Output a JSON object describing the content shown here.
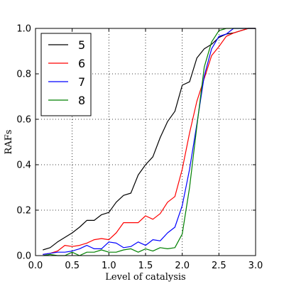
{
  "chart_data": {
    "type": "line",
    "title": "",
    "xlabel": "Level of catalysis",
    "ylabel": "RAFs",
    "xlim": [
      0.0,
      3.0
    ],
    "ylim": [
      0.0,
      1.0
    ],
    "xticks": [
      0.0,
      0.5,
      1.0,
      1.5,
      2.0,
      2.5,
      3.0
    ],
    "xtick_labels": [
      "0.0",
      "0.5",
      "1.0",
      "1.5",
      "2.0",
      "2.5",
      "3.0"
    ],
    "yticks": [
      0.0,
      0.2,
      0.4,
      0.6,
      0.8,
      1.0
    ],
    "ytick_labels": [
      "0.0",
      "0.2",
      "0.4",
      "0.6",
      "0.8",
      "1.0"
    ],
    "grid": true,
    "legend_position": "top-left",
    "x": [
      0.1,
      0.2,
      0.3,
      0.4,
      0.5,
      0.6,
      0.7,
      0.8,
      0.9,
      1.0,
      1.1,
      1.2,
      1.3,
      1.4,
      1.5,
      1.6,
      1.7,
      1.8,
      1.9,
      2.0,
      2.1,
      2.2,
      2.3,
      2.4,
      2.5,
      2.6,
      2.7,
      2.8,
      2.9,
      3.0
    ],
    "series": [
      {
        "name": "5",
        "color": "#000000",
        "values": [
          0.025,
          0.035,
          0.06,
          0.08,
          0.1,
          0.125,
          0.155,
          0.155,
          0.18,
          0.19,
          0.235,
          0.265,
          0.275,
          0.355,
          0.4,
          0.435,
          0.52,
          0.59,
          0.635,
          0.75,
          0.765,
          0.87,
          0.91,
          0.93,
          0.96,
          0.975,
          0.98,
          0.99,
          1.0,
          1.0
        ]
      },
      {
        "name": "6",
        "color": "#ff0000",
        "values": [
          0.005,
          0.01,
          0.02,
          0.045,
          0.04,
          0.045,
          0.055,
          0.07,
          0.075,
          0.07,
          0.1,
          0.145,
          0.145,
          0.145,
          0.175,
          0.16,
          0.185,
          0.235,
          0.26,
          0.38,
          0.54,
          0.68,
          0.78,
          0.88,
          0.92,
          0.965,
          0.98,
          0.99,
          1.0,
          1.0
        ]
      },
      {
        "name": "7",
        "color": "#0000ff",
        "values": [
          0.005,
          0.01,
          0.015,
          0.015,
          0.02,
          0.03,
          0.045,
          0.03,
          0.03,
          0.06,
          0.055,
          0.035,
          0.04,
          0.06,
          0.045,
          0.07,
          0.065,
          0.1,
          0.125,
          0.22,
          0.38,
          0.58,
          0.79,
          0.91,
          0.965,
          0.975,
          1.0,
          1.0,
          1.0,
          1.0
        ]
      },
      {
        "name": "8",
        "color": "#008000",
        "values": [
          0.0,
          0.005,
          0.0,
          0.0,
          0.015,
          0.0,
          0.015,
          0.015,
          0.025,
          0.015,
          0.015,
          0.025,
          0.03,
          0.015,
          0.03,
          0.02,
          0.035,
          0.03,
          0.035,
          0.095,
          0.3,
          0.57,
          0.83,
          0.94,
          0.99,
          1.0,
          1.0,
          1.0,
          1.0,
          1.0
        ]
      }
    ]
  }
}
